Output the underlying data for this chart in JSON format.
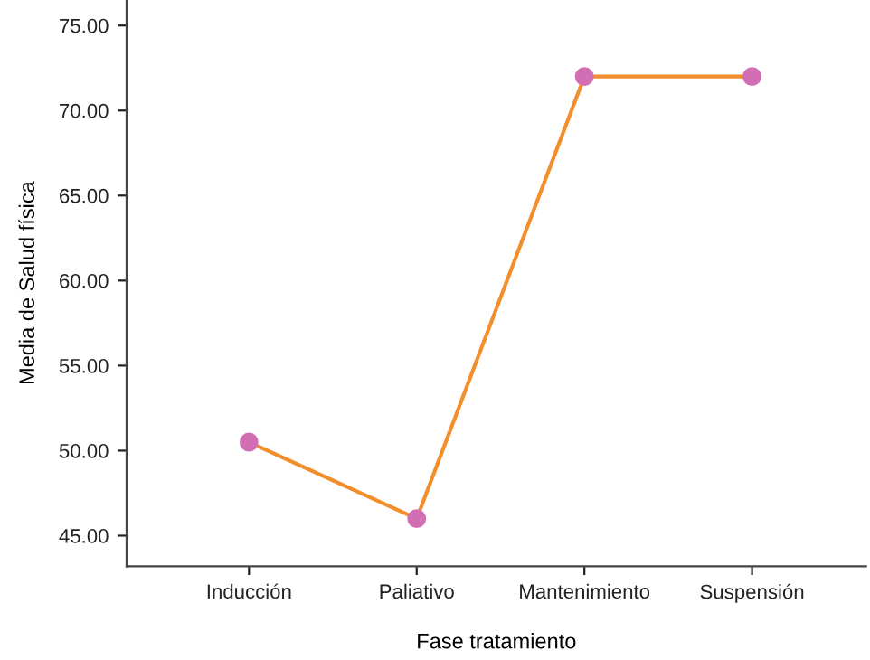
{
  "chart_data": {
    "type": "line",
    "xlabel": "Fase tratamiento",
    "ylabel": "Media de Salud física",
    "categories": [
      "Inducción",
      "Paliativo",
      "Mantenimiento",
      "Suspensión"
    ],
    "series": [
      {
        "color": "#f28e2b",
        "colors": [
          "#d26eb4",
          "#d26eb4",
          "#d26eb4",
          "#d26eb4"
        ],
        "values": [
          50.5,
          46.0,
          72.0,
          72.0
        ]
      }
    ],
    "marker": "circle",
    "grid": false,
    "legend": false,
    "ylim": [
      43.2,
      76.5
    ],
    "yticks": [
      {
        "value": 45,
        "label": "45.00"
      },
      {
        "value": 50,
        "label": "50.00"
      },
      {
        "value": 55,
        "label": "55.00"
      },
      {
        "value": 60,
        "label": "60.00"
      },
      {
        "value": 65,
        "label": "65.00"
      },
      {
        "value": 70,
        "label": "70.00"
      },
      {
        "value": 75,
        "label": "75.00"
      }
    ]
  }
}
